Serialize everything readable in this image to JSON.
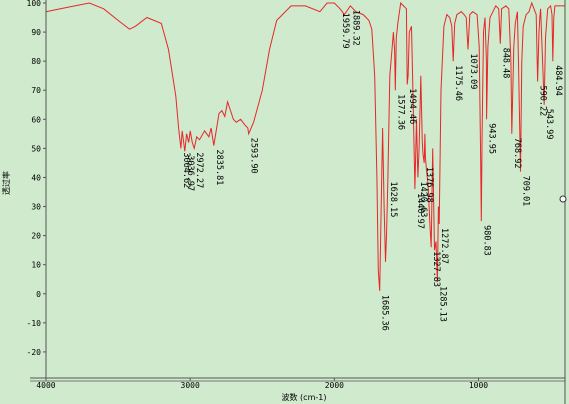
{
  "chart_data": {
    "type": "line",
    "title": "",
    "xlabel": "波数 (cm-1)",
    "ylabel": "透过率",
    "xlim": [
      4000,
      400
    ],
    "ylim": [
      -30,
      100
    ],
    "x_ticks": [
      "4000",
      "3000",
      "2000",
      "1000"
    ],
    "y_ticks": [
      "100",
      "90",
      "80",
      "70",
      "60",
      "50",
      "40",
      "30",
      "20",
      "10",
      "0",
      "-10",
      "-20"
    ],
    "grid": false,
    "colors": {
      "background": "#cfeacd",
      "line": "#e8262a",
      "axis": "#555555"
    },
    "series": [
      {
        "points": [
          [
            4000,
            97
          ],
          [
            3900,
            98
          ],
          [
            3800,
            99
          ],
          [
            3700,
            100
          ],
          [
            3600,
            98
          ],
          [
            3500,
            94
          ],
          [
            3420,
            91
          ],
          [
            3380,
            92
          ],
          [
            3300,
            95
          ],
          [
            3200,
            93
          ],
          [
            3150,
            84
          ],
          [
            3100,
            68
          ],
          [
            3080,
            57
          ],
          [
            3064.62,
            50
          ],
          [
            3055,
            56
          ],
          [
            3045,
            52
          ],
          [
            3036.97,
            49
          ],
          [
            3025,
            55
          ],
          [
            3010,
            52
          ],
          [
            3000,
            56
          ],
          [
            2985,
            52
          ],
          [
            2972.27,
            50
          ],
          [
            2955,
            54
          ],
          [
            2935,
            53
          ],
          [
            2900,
            56
          ],
          [
            2870,
            54
          ],
          [
            2855,
            57
          ],
          [
            2835.81,
            51
          ],
          [
            2800,
            62
          ],
          [
            2780,
            63
          ],
          [
            2760,
            61
          ],
          [
            2740,
            66
          ],
          [
            2720,
            63
          ],
          [
            2700,
            60
          ],
          [
            2680,
            59
          ],
          [
            2650,
            60
          ],
          [
            2620,
            58
          ],
          [
            2600,
            57
          ],
          [
            2593.9,
            55
          ],
          [
            2560,
            59
          ],
          [
            2500,
            70
          ],
          [
            2450,
            84
          ],
          [
            2400,
            94
          ],
          [
            2300,
            99
          ],
          [
            2200,
            99
          ],
          [
            2100,
            97
          ],
          [
            2050,
            100
          ],
          [
            2000,
            100
          ],
          [
            1959.79,
            98
          ],
          [
            1930,
            96
          ],
          [
            1889.32,
            99
          ],
          [
            1850,
            97
          ],
          [
            1800,
            96
          ],
          [
            1760,
            94
          ],
          [
            1740,
            91
          ],
          [
            1720,
            75
          ],
          [
            1705,
            40
          ],
          [
            1695,
            8
          ],
          [
            1685.36,
            1
          ],
          [
            1675,
            30
          ],
          [
            1665,
            57
          ],
          [
            1655,
            30
          ],
          [
            1645,
            11
          ],
          [
            1638,
            20
          ],
          [
            1628.15,
            40
          ],
          [
            1615,
            75
          ],
          [
            1600,
            84
          ],
          [
            1590,
            90
          ],
          [
            1582,
            84
          ],
          [
            1577.36,
            70
          ],
          [
            1570,
            88
          ],
          [
            1560,
            93
          ],
          [
            1540,
            100
          ],
          [
            1520,
            99
          ],
          [
            1500,
            98
          ],
          [
            1494.46,
            72
          ],
          [
            1488,
            75
          ],
          [
            1480,
            90
          ],
          [
            1465,
            92
          ],
          [
            1455,
            70
          ],
          [
            1440.97,
            36
          ],
          [
            1430,
            60
          ],
          [
            1420.63,
            40
          ],
          [
            1412,
            50
          ],
          [
            1400,
            75
          ],
          [
            1390,
            52
          ],
          [
            1385,
            48
          ],
          [
            1376.98,
            45
          ],
          [
            1372,
            55
          ],
          [
            1368,
            47
          ],
          [
            1360,
            42
          ],
          [
            1350,
            38
          ],
          [
            1343,
            30
          ],
          [
            1335,
            22
          ],
          [
            1327.83,
            16
          ],
          [
            1318,
            50
          ],
          [
            1305,
            15
          ],
          [
            1295,
            18
          ],
          [
            1285.13,
            4
          ],
          [
            1278,
            30
          ],
          [
            1272.87,
            24
          ],
          [
            1260,
            70
          ],
          [
            1240,
            92
          ],
          [
            1220,
            96
          ],
          [
            1200,
            95
          ],
          [
            1185,
            92
          ],
          [
            1175.46,
            80
          ],
          [
            1165,
            93
          ],
          [
            1150,
            96
          ],
          [
            1120,
            97
          ],
          [
            1100,
            96
          ],
          [
            1085,
            95
          ],
          [
            1073.09,
            84
          ],
          [
            1060,
            96
          ],
          [
            1040,
            97
          ],
          [
            1010,
            96
          ],
          [
            995,
            85
          ],
          [
            985,
            45
          ],
          [
            980.83,
            25
          ],
          [
            975,
            55
          ],
          [
            965,
            90
          ],
          [
            955,
            95
          ],
          [
            945,
            80
          ],
          [
            943.95,
            60
          ],
          [
            935,
            85
          ],
          [
            920,
            95
          ],
          [
            900,
            97
          ],
          [
            880,
            99
          ],
          [
            860,
            98
          ],
          [
            848.48,
            86
          ],
          [
            840,
            98
          ],
          [
            810,
            99
          ],
          [
            790,
            98
          ],
          [
            775,
            80
          ],
          [
            768.92,
            55
          ],
          [
            755,
            85
          ],
          [
            745,
            93
          ],
          [
            730,
            97
          ],
          [
            722,
            78
          ],
          [
            709.01,
            42
          ],
          [
            700,
            80
          ],
          [
            690,
            92
          ],
          [
            670,
            96
          ],
          [
            650,
            97
          ],
          [
            630,
            100
          ],
          [
            615,
            98
          ],
          [
            600,
            96
          ],
          [
            590.22,
            73
          ],
          [
            580,
            90
          ],
          [
            575,
            95
          ],
          [
            569,
            98
          ],
          [
            543.99,
            65
          ],
          [
            535,
            88
          ],
          [
            520,
            98
          ],
          [
            500,
            99
          ],
          [
            490,
            96
          ],
          [
            484.94,
            80
          ],
          [
            478,
            95
          ],
          [
            470,
            99
          ],
          [
            450,
            99
          ],
          [
            420,
            99
          ],
          [
            400,
            99
          ]
        ]
      }
    ],
    "peak_labels": [
      {
        "label": "3064.62",
        "x": 3064.62,
        "y": 50
      },
      {
        "label": "3036.97",
        "x": 3036.97,
        "y": 49
      },
      {
        "label": "2972.27",
        "x": 2972.27,
        "y": 50
      },
      {
        "label": "2835.81",
        "x": 2835.81,
        "y": 51
      },
      {
        "label": "2593.90",
        "x": 2593.9,
        "y": 55
      },
      {
        "label": "1959.79",
        "x": 1959.79,
        "y": 98
      },
      {
        "label": "1889.32",
        "x": 1889.32,
        "y": 99
      },
      {
        "label": "1685.36",
        "x": 1685.36,
        "y": 1
      },
      {
        "label": "1628.15",
        "x": 1628.15,
        "y": 40
      },
      {
        "label": "1577.36",
        "x": 1577.36,
        "y": 70
      },
      {
        "label": "1494.46",
        "x": 1494.46,
        "y": 72
      },
      {
        "label": "1440.97",
        "x": 1440.97,
        "y": 36
      },
      {
        "label": "1420.63",
        "x": 1420.63,
        "y": 40
      },
      {
        "label": "1376.98",
        "x": 1376.98,
        "y": 45
      },
      {
        "label": "1327.83",
        "x": 1327.83,
        "y": 16
      },
      {
        "label": "1285.13",
        "x": 1285.13,
        "y": 4
      },
      {
        "label": "1272.87",
        "x": 1272.87,
        "y": 24
      },
      {
        "label": "1175.46",
        "x": 1175.46,
        "y": 80
      },
      {
        "label": "1073.09",
        "x": 1073.09,
        "y": 84
      },
      {
        "label": "980.83",
        "x": 980.83,
        "y": 25
      },
      {
        "label": "943.95",
        "x": 943.95,
        "y": 60
      },
      {
        "label": "848.48",
        "x": 848.48,
        "y": 86
      },
      {
        "label": "768.92",
        "x": 768.92,
        "y": 55
      },
      {
        "label": "709.01",
        "x": 709.01,
        "y": 42
      },
      {
        "label": "590.22",
        "x": 590.22,
        "y": 73
      },
      {
        "label": "543.99",
        "x": 543.99,
        "y": 65
      },
      {
        "label": "484.94",
        "x": 484.94,
        "y": 80
      }
    ]
  }
}
